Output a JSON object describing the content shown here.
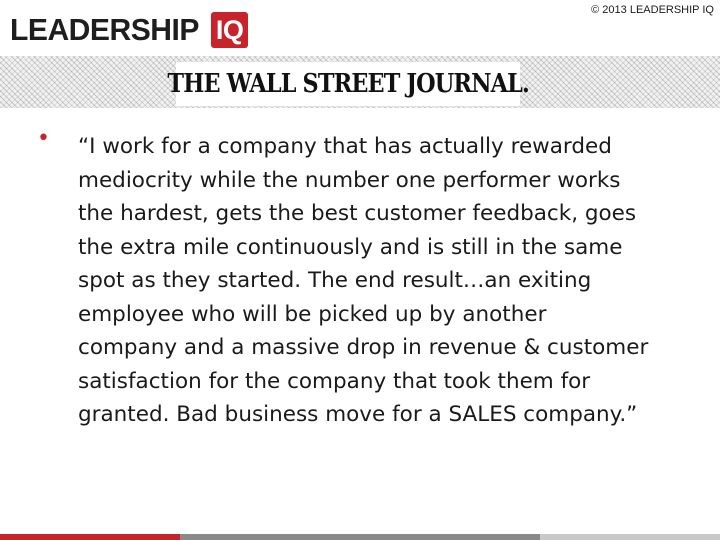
{
  "header": {
    "logo_word": "LEADERSHIP",
    "logo_badge": "IQ",
    "copyright": "© 2013 LEADERSHIP IQ"
  },
  "masthead": {
    "text": "THE WALL STREET JOURNAL."
  },
  "quote": {
    "lines": [
      "“I work for a company that has actually rewarded",
      "mediocrity while the number one performer works",
      "the hardest, gets the best customer feedback, goes",
      "the extra mile continuously and is still in the same",
      "spot as they started. The end result…an exiting",
      "employee who will be picked up by another",
      "company and a massive drop in revenue & customer",
      "satisfaction for the company that took them for",
      "granted. Bad business move for a SALES company.”"
    ]
  },
  "colors": {
    "brand_red": "#c7232b",
    "text_dark": "#1a1a1a",
    "bar_gray": "#8a8a8a",
    "bar_lightgray": "#c9c9c9"
  },
  "icons": {
    "bullet": "bullet-dot-icon"
  }
}
